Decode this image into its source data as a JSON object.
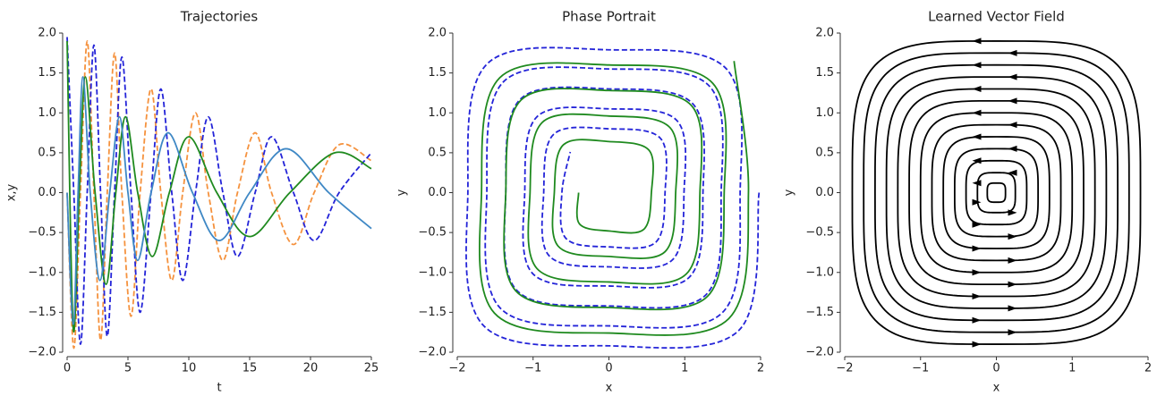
{
  "chart_data": [
    {
      "type": "line",
      "title": "Trajectories",
      "xlabel": "t",
      "ylabel": "x,y",
      "xlim": [
        0,
        25
      ],
      "ylim": [
        -2,
        2
      ],
      "xticks": [
        0,
        5,
        10,
        15,
        20,
        25
      ],
      "yticks": [
        {
          "value": -2,
          "label": "−2.0"
        },
        {
          "value": -1.5,
          "label": "−1.5"
        },
        {
          "value": -1,
          "label": "−1.0"
        },
        {
          "value": -0.5,
          "label": "−0.5"
        },
        {
          "value": 0,
          "label": "0.0"
        },
        {
          "value": 0.5,
          "label": "0.5"
        },
        {
          "value": 1,
          "label": "1.0"
        },
        {
          "value": 1.5,
          "label": "1.5"
        },
        {
          "value": 2,
          "label": "2.0"
        }
      ],
      "series": [
        {
          "color": "#f5923e",
          "dashed": true,
          "x": [
            0,
            0.55,
            1.1,
            1.65,
            2.2,
            2.75,
            3.3,
            3.9,
            4.5,
            5.25,
            6.0,
            6.9,
            7.7,
            8.6,
            9.5,
            10.55,
            11.6,
            12.8,
            14.0,
            15.45,
            16.8,
            18.6,
            20.3,
            22.35,
            25
          ],
          "values": [
            0,
            -1.95,
            0,
            1.9,
            0,
            -1.85,
            0,
            1.75,
            0,
            -1.55,
            0,
            1.3,
            0,
            -1.1,
            0,
            1.0,
            0,
            -0.85,
            0,
            0.75,
            0,
            -0.65,
            0,
            0.6,
            0.4
          ]
        },
        {
          "color": "#2424d8",
          "dashed": true,
          "x": [
            0,
            0.55,
            1.1,
            1.65,
            2.2,
            2.75,
            3.3,
            3.9,
            4.5,
            5.25,
            6.0,
            6.9,
            7.7,
            8.6,
            9.5,
            10.55,
            11.6,
            12.8,
            14.0,
            15.45,
            16.8,
            18.6,
            20.3,
            22.35,
            25
          ],
          "values": [
            1.95,
            0,
            -1.9,
            0,
            1.85,
            0,
            -1.8,
            0,
            1.7,
            0,
            -1.5,
            0,
            1.3,
            0,
            -1.1,
            0,
            0.95,
            0,
            -0.8,
            0,
            0.7,
            0,
            -0.6,
            0,
            0.5
          ]
        },
        {
          "color": "#1f8a1f",
          "dashed": false,
          "x": [
            0,
            0.5,
            1.0,
            1.5,
            2.3,
            3.2,
            4.0,
            4.8,
            5.8,
            7.0,
            8.4,
            10.0,
            12.3,
            15.0,
            18.3,
            22.0,
            25
          ],
          "values": [
            1.9,
            -1.7,
            0,
            1.45,
            0,
            -1.15,
            0,
            0.95,
            0,
            -0.8,
            0,
            0.7,
            0,
            -0.55,
            0,
            0.5,
            0.3
          ]
        },
        {
          "color": "#3f88c5",
          "dashed": false,
          "x": [
            0,
            0.5,
            0.9,
            1.3,
            1.9,
            2.7,
            3.5,
            4.3,
            5.0,
            5.8,
            6.9,
            8.3,
            10.3,
            12.5,
            15.0,
            18.0,
            21.5,
            25
          ],
          "values": [
            0,
            -1.65,
            0,
            1.45,
            0,
            -1.1,
            0,
            0.95,
            0,
            -0.85,
            0,
            0.75,
            0,
            -0.6,
            0,
            0.55,
            0,
            -0.45
          ]
        }
      ]
    },
    {
      "type": "line",
      "title": "Phase Portrait",
      "xlabel": "x",
      "ylabel": "y",
      "xlim": [
        -2,
        2
      ],
      "ylim": [
        -2,
        2
      ],
      "xticks": [
        {
          "value": -2,
          "label": "−2"
        },
        {
          "value": -1,
          "label": "−1"
        },
        0,
        1,
        2
      ],
      "yticks": [
        {
          "value": -2,
          "label": "−2.0"
        },
        {
          "value": -1.5,
          "label": "−1.5"
        },
        {
          "value": -1,
          "label": "−1.0"
        },
        {
          "value": -0.5,
          "label": "−0.5"
        },
        {
          "value": 0,
          "label": "0.0"
        },
        {
          "value": 0.5,
          "label": "0.5"
        },
        {
          "value": 1,
          "label": "1.0"
        },
        {
          "value": 1.5,
          "label": "1.5"
        },
        {
          "value": 2,
          "label": "2.0"
        }
      ],
      "series": [
        {
          "color": "#2424d8",
          "dashed": true,
          "x": [
            1.98,
            1.72,
            0,
            -1.66,
            -1.86,
            -1.61,
            0,
            1.55,
            1.73,
            1.5,
            0,
            -1.44,
            -1.61,
            -1.39,
            0,
            1.33,
            1.48,
            1.28,
            0,
            -1.22,
            -1.36,
            -1.17,
            0,
            1.11,
            1.24,
            1.06,
            0,
            -1.01,
            -1.11,
            -0.95,
            0,
            0.9,
            0.99,
            0.84,
            0,
            -0.79,
            -0.86,
            -0.73,
            0,
            0.68,
            0.74,
            0.62,
            0,
            -0.57,
            -0.62,
            -0.51
          ],
          "values": [
            0,
            -1.72,
            -1.92,
            -1.66,
            0,
            1.61,
            1.79,
            1.55,
            0,
            -1.5,
            -1.67,
            -1.44,
            0,
            1.39,
            1.55,
            1.33,
            0,
            -1.28,
            -1.42,
            -1.22,
            0,
            1.17,
            1.3,
            1.11,
            0,
            -1.06,
            -1.17,
            -1.01,
            0,
            0.95,
            1.05,
            0.9,
            0,
            -0.84,
            -0.93,
            -0.79,
            0,
            0.73,
            0.8,
            0.68,
            0,
            -0.62,
            -0.68,
            -0.57,
            0,
            0.51
          ]
        },
        {
          "color": "#1f8a1f",
          "dashed": false,
          "x": [
            1.65,
            1.84,
            1.58,
            0,
            -1.51,
            -1.68,
            -1.44,
            0,
            1.37,
            1.52,
            1.3,
            0,
            -1.23,
            -1.36,
            -1.16,
            0,
            1.09,
            1.2,
            1.02,
            0,
            -0.95,
            -1.04,
            -0.88,
            0,
            0.81,
            0.88,
            0.74,
            0,
            -0.67,
            -0.72,
            -0.6,
            0,
            0.53,
            0.56,
            0.46,
            0,
            -0.39,
            -0.4
          ],
          "values": [
            1.65,
            0,
            -1.58,
            -1.76,
            -1.51,
            0,
            1.44,
            1.6,
            1.37,
            0,
            -1.3,
            -1.44,
            -1.23,
            0,
            1.16,
            1.28,
            1.09,
            0,
            -1.02,
            -1.12,
            -0.95,
            0,
            0.88,
            0.96,
            0.81,
            0,
            -0.74,
            -0.8,
            -0.67,
            0,
            0.6,
            0.64,
            0.53,
            0,
            -0.46,
            -0.48,
            -0.39,
            0
          ]
        }
      ]
    },
    {
      "type": "streamplot",
      "title": "Learned Vector Field",
      "xlabel": "x",
      "ylabel": "y",
      "xlim": [
        -2,
        2
      ],
      "ylim": [
        -2,
        2
      ],
      "xticks": [
        {
          "value": -2,
          "label": "−2"
        },
        {
          "value": -1,
          "label": "−1"
        },
        0,
        1,
        2
      ],
      "yticks": [
        {
          "value": -2,
          "label": "−2.0"
        },
        {
          "value": -1.5,
          "label": "−1.5"
        },
        {
          "value": -1,
          "label": "−1.0"
        },
        {
          "value": -0.5,
          "label": "−0.5"
        },
        {
          "value": 0,
          "label": "0.0"
        },
        {
          "value": 0.5,
          "label": "0.5"
        },
        {
          "value": 1,
          "label": "1.0"
        },
        {
          "value": 1.5,
          "label": "1.5"
        },
        {
          "value": 2,
          "label": "2.0"
        }
      ],
      "color": "#000000",
      "loops": [
        0.12,
        0.25,
        0.4,
        0.55,
        0.7,
        0.85,
        1.0,
        1.15,
        1.3,
        1.45,
        1.6,
        1.75,
        1.9
      ]
    }
  ]
}
